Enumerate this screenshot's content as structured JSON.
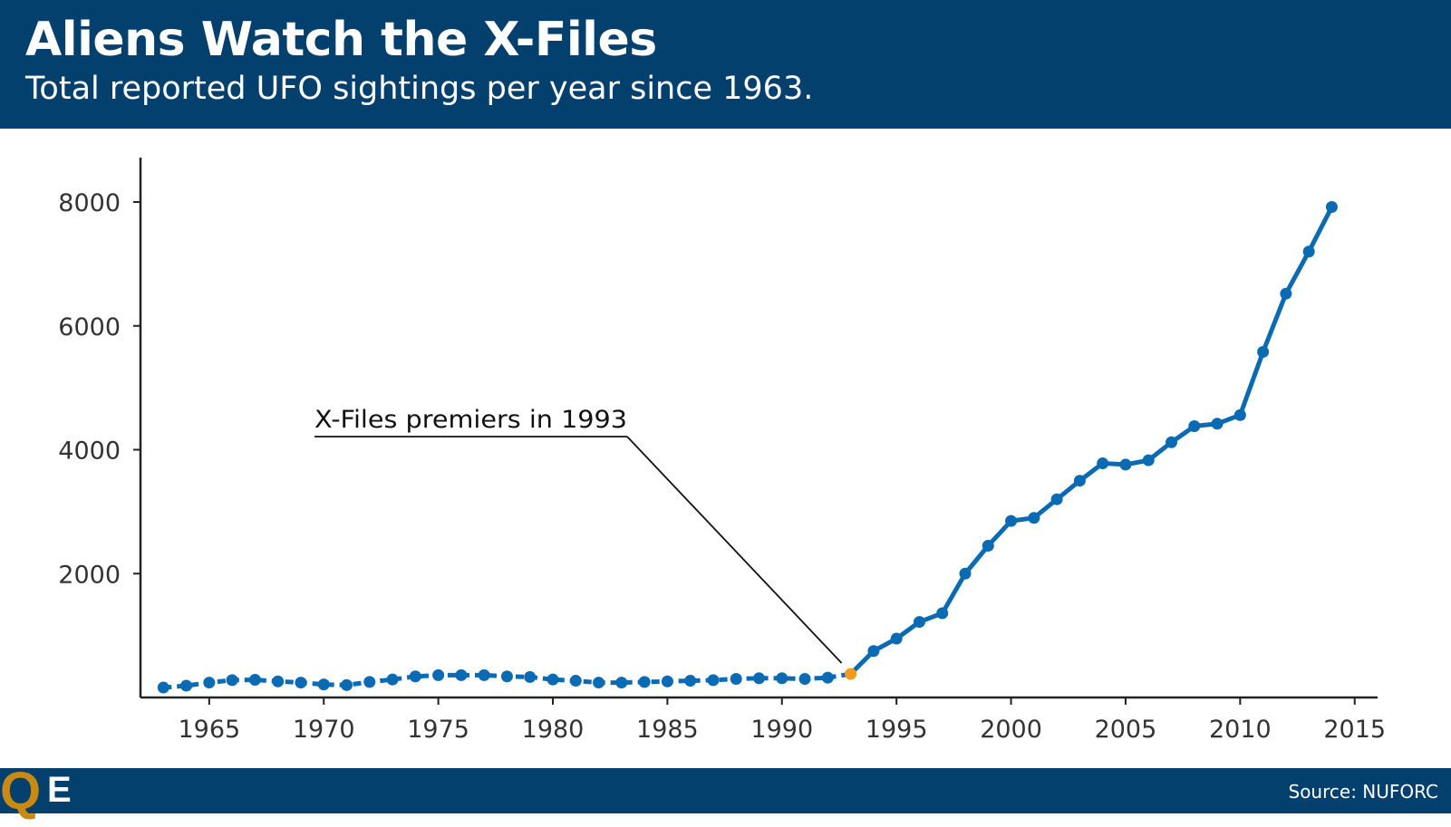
{
  "header": {
    "title": "Aliens Watch the X-Files",
    "subtitle": "Total reported UFO sightings per year since 1963."
  },
  "footer": {
    "logo_q": "Q",
    "logo_e": "E",
    "source": "Source: NUFORC"
  },
  "colors": {
    "header_bg": "#03406d",
    "series": "#0a6ab4",
    "highlight": "#f59a1b",
    "logo_accent": "#c98a14"
  },
  "chart_data": {
    "type": "line",
    "title": "Aliens Watch the X-Files",
    "subtitle": "Total reported UFO sightings per year since 1963.",
    "xlabel": "",
    "ylabel": "",
    "xlim": [
      1962,
      2016
    ],
    "ylim": [
      0,
      8600
    ],
    "x_ticks": [
      1965,
      1970,
      1975,
      1980,
      1985,
      1990,
      1995,
      2000,
      2005,
      2010,
      2015
    ],
    "y_ticks": [
      2000,
      4000,
      6000,
      8000
    ],
    "grid": false,
    "legend": "none",
    "series": [
      {
        "x": [
          1963,
          1964,
          1965,
          1966,
          1967,
          1968,
          1969,
          1970,
          1971,
          1972,
          1973,
          1974,
          1975,
          1976,
          1977,
          1978,
          1979,
          1980,
          1981,
          1982,
          1983,
          1984,
          1985,
          1986,
          1987,
          1988,
          1989,
          1990,
          1991,
          1992,
          1993,
          1994,
          1995,
          1996,
          1997,
          1998,
          1999,
          2000,
          2001,
          2002,
          2003,
          2004,
          2005,
          2006,
          2007,
          2008,
          2009,
          2010,
          2011,
          2012,
          2013,
          2014
        ],
        "values": [
          160,
          190,
          240,
          280,
          285,
          260,
          240,
          210,
          200,
          250,
          290,
          340,
          360,
          360,
          360,
          340,
          330,
          290,
          270,
          240,
          240,
          250,
          260,
          270,
          280,
          300,
          310,
          310,
          300,
          320,
          380,
          750,
          950,
          1220,
          1360,
          2000,
          2450,
          2850,
          2900,
          3200,
          3500,
          3780,
          3760,
          3830,
          4120,
          4380,
          4420,
          4560,
          5580,
          6520,
          7200,
          7920
        ]
      }
    ],
    "annotations": [
      {
        "text": "X-Files premiers in 1993",
        "x": 1993,
        "y": 380
      }
    ]
  }
}
